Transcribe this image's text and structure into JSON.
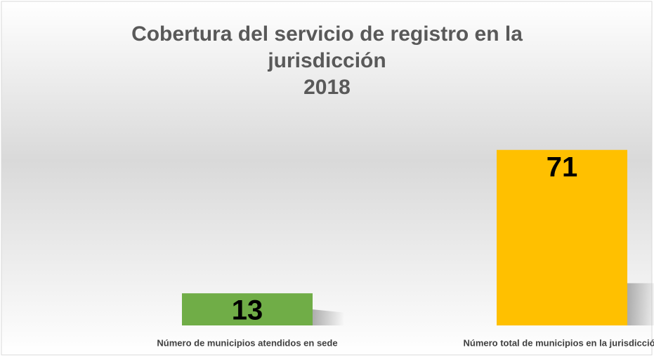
{
  "chart_data": {
    "type": "bar",
    "title": "Cobertura del servicio de registro en la jurisdicción",
    "subtitle": "2018",
    "categories": [
      "Número de municipios atendidos en sede",
      "Número total de municipios en la jurisdicción"
    ],
    "values": [
      13,
      71
    ],
    "colors": [
      "#70ad47",
      "#ffc000"
    ],
    "ylim": [
      0,
      80
    ],
    "grid": false
  }
}
